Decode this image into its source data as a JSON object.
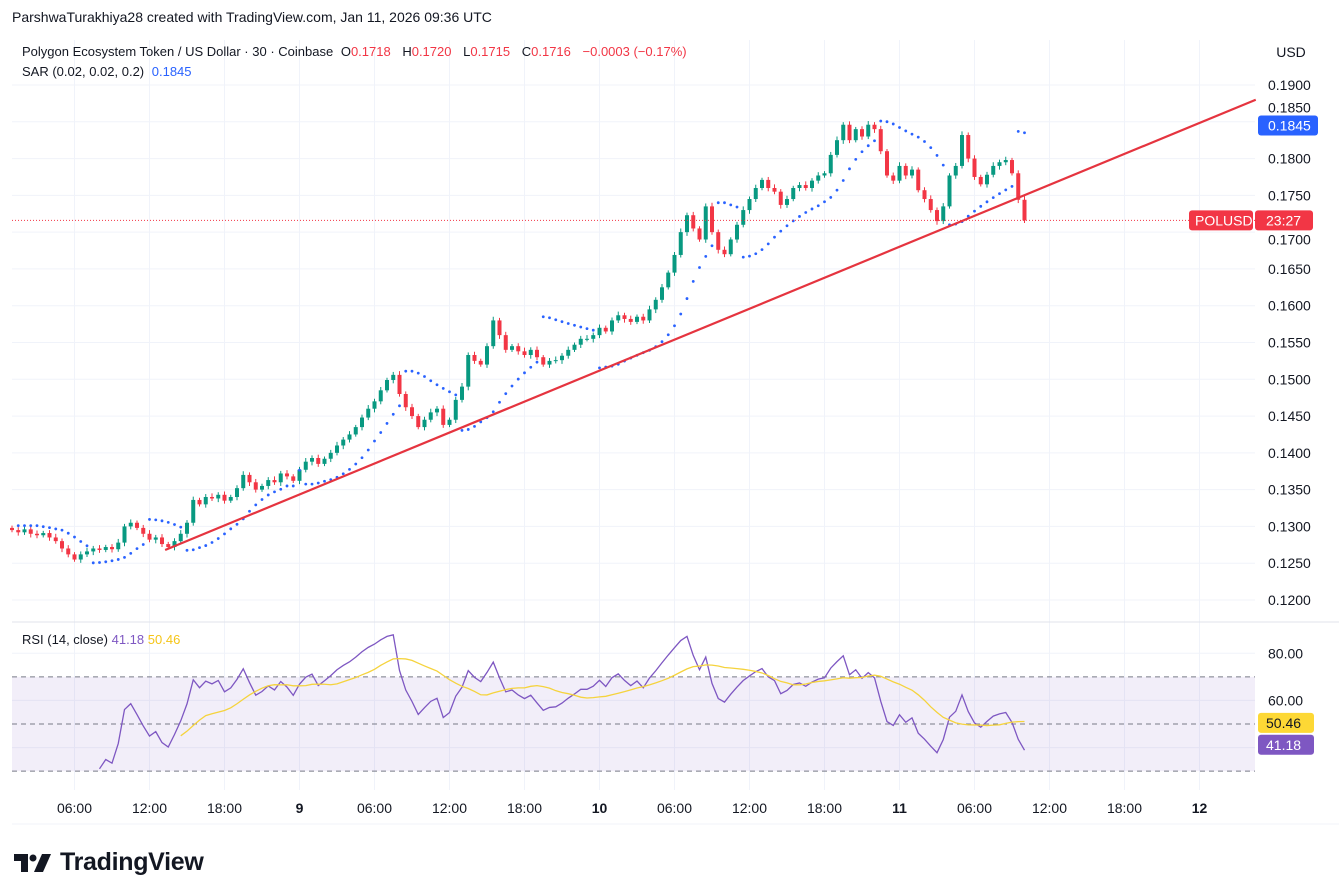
{
  "attribution": "ParshwaTurakhiya28 created with TradingView.com, Jan 11, 2026 09:36 UTC",
  "legend": {
    "symbol_title": "Polygon Ecosystem Token / US Dollar · 30 · Coinbase",
    "o_label": "O",
    "o_value": "0.1718",
    "h_label": "H",
    "h_value": "0.1720",
    "l_label": "L",
    "l_value": "0.1715",
    "c_label": "C",
    "c_value": "0.1716",
    "change": "−0.0003 (−0.17%)",
    "sar_title": "SAR (0.02, 0.02, 0.2)",
    "sar_value": "0.1845"
  },
  "rsi_legend": {
    "title": "RSI (14, close)",
    "rsi_value": "41.18",
    "ma_value": "50.46"
  },
  "price_axis": {
    "currency": "USD",
    "sar_badge": "0.1845",
    "symbol_badge": "POLUSD",
    "countdown": "23:27"
  },
  "rsi_axis": {
    "ticks": [
      "80.00",
      "60.00"
    ],
    "ma_badge": "50.46",
    "rsi_badge": "41.18"
  },
  "logo_text": "TradingView",
  "colors": {
    "up": "#089981",
    "down": "#f23645",
    "sar": "#2962ff",
    "trendline": "#e5343f",
    "rsi": "#7e57c2",
    "rsi_ma": "#f5d33d",
    "grid": "#f0f3fa"
  },
  "chart_data": {
    "type": "candlestick",
    "symbol": "POLUSD",
    "interval": "30",
    "ylim": [
      0.1175,
      0.1925
    ],
    "price_ticks": [
      "0.1900",
      "0.1850",
      "0.1800",
      "0.1750",
      "0.1700",
      "0.1650",
      "0.1600",
      "0.1550",
      "0.1500",
      "0.1450",
      "0.1400",
      "0.1350",
      "0.1300",
      "0.1250",
      "0.1200"
    ],
    "time_ticks": [
      {
        "label": "06:00",
        "bar": 10
      },
      {
        "label": "12:00",
        "bar": 22
      },
      {
        "label": "18:00",
        "bar": 34
      },
      {
        "label": "9",
        "bar": 46
      },
      {
        "label": "06:00",
        "bar": 58
      },
      {
        "label": "12:00",
        "bar": 70
      },
      {
        "label": "18:00",
        "bar": 82
      },
      {
        "label": "10",
        "bar": 94
      },
      {
        "label": "06:00",
        "bar": 106
      },
      {
        "label": "12:00",
        "bar": 118
      },
      {
        "label": "18:00",
        "bar": 130
      },
      {
        "label": "11",
        "bar": 142
      },
      {
        "label": "06:00",
        "bar": 154
      },
      {
        "label": "12:00",
        "bar": 166
      },
      {
        "label": "18:00",
        "bar": 178
      },
      {
        "label": "12",
        "bar": 190
      }
    ],
    "closes": [
      0.1295,
      0.1292,
      0.1296,
      0.129,
      0.1288,
      0.1291,
      0.1285,
      0.128,
      0.127,
      0.1262,
      0.1255,
      0.1262,
      0.1266,
      0.127,
      0.1268,
      0.1272,
      0.1269,
      0.1278,
      0.13,
      0.1305,
      0.1298,
      0.129,
      0.1282,
      0.1285,
      0.1276,
      0.1272,
      0.128,
      0.129,
      0.1305,
      0.1336,
      0.133,
      0.134,
      0.1338,
      0.1343,
      0.1335,
      0.134,
      0.1352,
      0.137,
      0.136,
      0.135,
      0.1355,
      0.1363,
      0.136,
      0.1372,
      0.1368,
      0.1362,
      0.1377,
      0.1388,
      0.1393,
      0.1385,
      0.1392,
      0.14,
      0.141,
      0.1418,
      0.1425,
      0.1435,
      0.1448,
      0.146,
      0.147,
      0.1485,
      0.1499,
      0.1506,
      0.148,
      0.1462,
      0.145,
      0.1435,
      0.1445,
      0.1455,
      0.146,
      0.1438,
      0.1445,
      0.1472,
      0.149,
      0.1533,
      0.1525,
      0.152,
      0.1545,
      0.158,
      0.156,
      0.154,
      0.1545,
      0.1538,
      0.1533,
      0.154,
      0.153,
      0.152,
      0.1525,
      0.1526,
      0.1532,
      0.154,
      0.1547,
      0.1555,
      0.1555,
      0.156,
      0.157,
      0.1565,
      0.158,
      0.1587,
      0.1582,
      0.1578,
      0.1585,
      0.158,
      0.1595,
      0.1608,
      0.1625,
      0.1645,
      0.1669,
      0.17,
      0.1723,
      0.1705,
      0.169,
      0.1735,
      0.17,
      0.1676,
      0.167,
      0.169,
      0.171,
      0.173,
      0.1745,
      0.176,
      0.1771,
      0.176,
      0.1755,
      0.1737,
      0.1745,
      0.176,
      0.1764,
      0.176,
      0.177,
      0.1777,
      0.178,
      0.1805,
      0.1825,
      0.1846,
      0.1825,
      0.184,
      0.183,
      0.1846,
      0.184,
      0.181,
      0.1777,
      0.177,
      0.179,
      0.1777,
      0.1785,
      0.1757,
      0.1745,
      0.173,
      0.1715,
      0.1735,
      0.1777,
      0.179,
      0.1832,
      0.18,
      0.1775,
      0.1765,
      0.1778,
      0.179,
      0.1795,
      0.1798,
      0.178,
      0.1744,
      0.1716
    ],
    "wick": 0.0005,
    "last_price": 0.1716,
    "sar_params": {
      "start": 0.02,
      "increment": 0.02,
      "max": 0.2
    },
    "trendline": {
      "from": {
        "bar": 24.5,
        "price": 0.1268
      },
      "to": {
        "bar": 199,
        "price": 0.188
      }
    },
    "rsi": {
      "length": 14,
      "ma_length": 14,
      "ylim": [
        22,
        92
      ],
      "bands": [
        70,
        50,
        30
      ],
      "last": 41.18,
      "ma_last": 50.46
    }
  }
}
